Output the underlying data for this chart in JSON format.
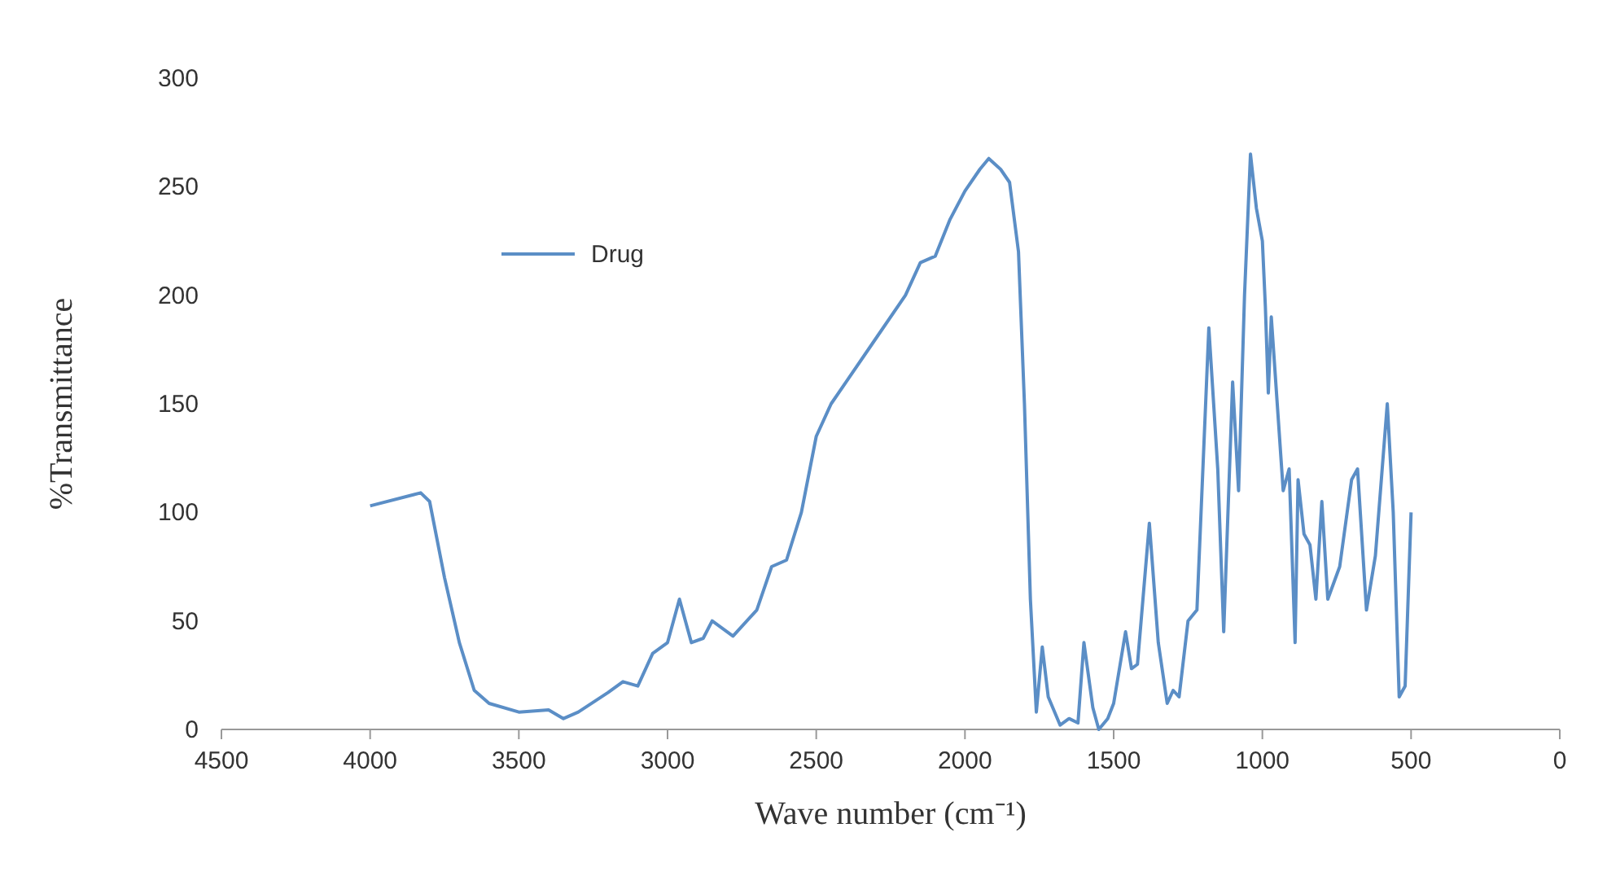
{
  "chart_data": {
    "type": "line",
    "xlabel": "Wave number (cm⁻¹)",
    "ylabel": "%Transmittance",
    "xlim": [
      4500,
      0
    ],
    "xticks": [
      4500,
      4000,
      3500,
      3000,
      2500,
      2000,
      1500,
      1000,
      500,
      0
    ],
    "ylim": [
      0,
      300
    ],
    "yticks": [
      0,
      50,
      100,
      150,
      200,
      250,
      300
    ],
    "grid": false,
    "legend": "top left",
    "marker": "none",
    "line_style": "solid",
    "x": [
      4000,
      3830,
      3800,
      3750,
      3700,
      3650,
      3600,
      3500,
      3400,
      3350,
      3300,
      3200,
      3150,
      3100,
      3050,
      3000,
      2960,
      2920,
      2880,
      2850,
      2780,
      2700,
      2650,
      2600,
      2550,
      2500,
      2450,
      2400,
      2300,
      2200,
      2150,
      2100,
      2050,
      2000,
      1950,
      1920,
      1880,
      1850,
      1820,
      1800,
      1780,
      1760,
      1740,
      1720,
      1680,
      1650,
      1620,
      1600,
      1570,
      1550,
      1520,
      1500,
      1460,
      1440,
      1420,
      1380,
      1350,
      1320,
      1300,
      1280,
      1250,
      1220,
      1180,
      1150,
      1130,
      1100,
      1080,
      1060,
      1040,
      1020,
      1000,
      990,
      980,
      970,
      950,
      930,
      910,
      890,
      880,
      860,
      840,
      820,
      800,
      780,
      740,
      700,
      680,
      650,
      620,
      580,
      560,
      540,
      520,
      500
    ],
    "series": [
      {
        "name": "Drug",
        "color": "#5b8ec6",
        "values": [
          103,
          109,
          105,
          70,
          40,
          18,
          12,
          8,
          9,
          5,
          8,
          17,
          22,
          20,
          35,
          40,
          60,
          40,
          42,
          50,
          43,
          55,
          75,
          78,
          100,
          135,
          150,
          160,
          180,
          200,
          215,
          218,
          235,
          248,
          258,
          263,
          258,
          252,
          220,
          150,
          60,
          8,
          38,
          15,
          2,
          5,
          3,
          40,
          10,
          0,
          5,
          12,
          45,
          28,
          30,
          95,
          40,
          12,
          18,
          15,
          50,
          55,
          185,
          120,
          45,
          160,
          110,
          200,
          265,
          240,
          225,
          195,
          155,
          190,
          150,
          110,
          120,
          40,
          115,
          90,
          85,
          60,
          105,
          60,
          75,
          115,
          120,
          55,
          80,
          150,
          100,
          15,
          20,
          100
        ]
      }
    ]
  }
}
